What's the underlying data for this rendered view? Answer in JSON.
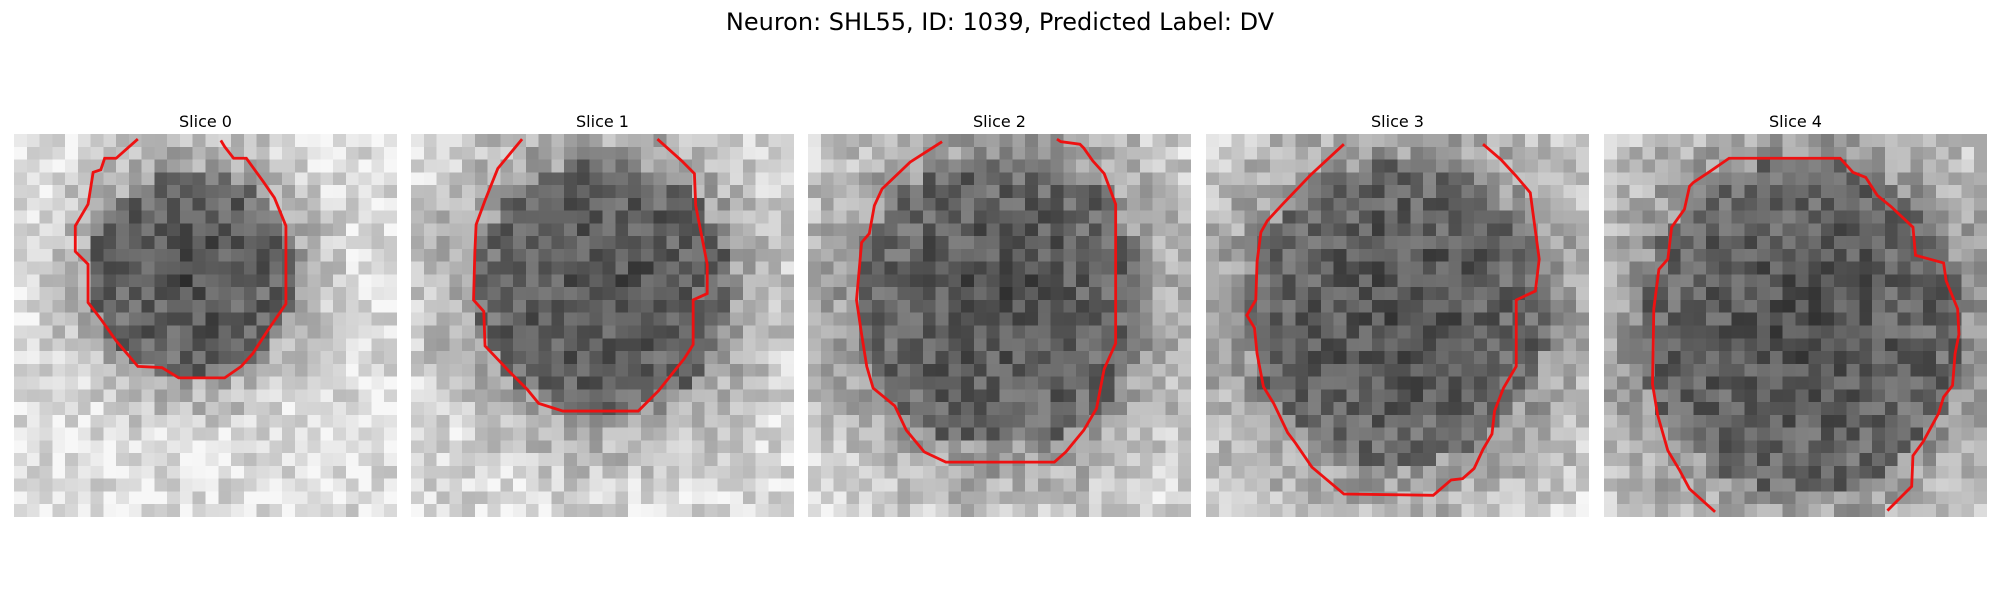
{
  "figure": {
    "title": "Neuron: SHL55, ID: 1039, Predicted Label: DV"
  },
  "panels": [
    {
      "label": "Slice 0",
      "bright": 0.5,
      "contour_color": "#ee1111"
    },
    {
      "label": "Slice 1",
      "bright": 0.35,
      "contour_color": "#ee1111"
    },
    {
      "label": "Slice 2",
      "bright": 0.25,
      "contour_color": "#ee1111"
    },
    {
      "label": "Slice 3",
      "bright": 0.22,
      "contour_color": "#ee1111"
    },
    {
      "label": "Slice 4",
      "bright": 0.2,
      "contour_color": "#ee1111"
    }
  ]
}
